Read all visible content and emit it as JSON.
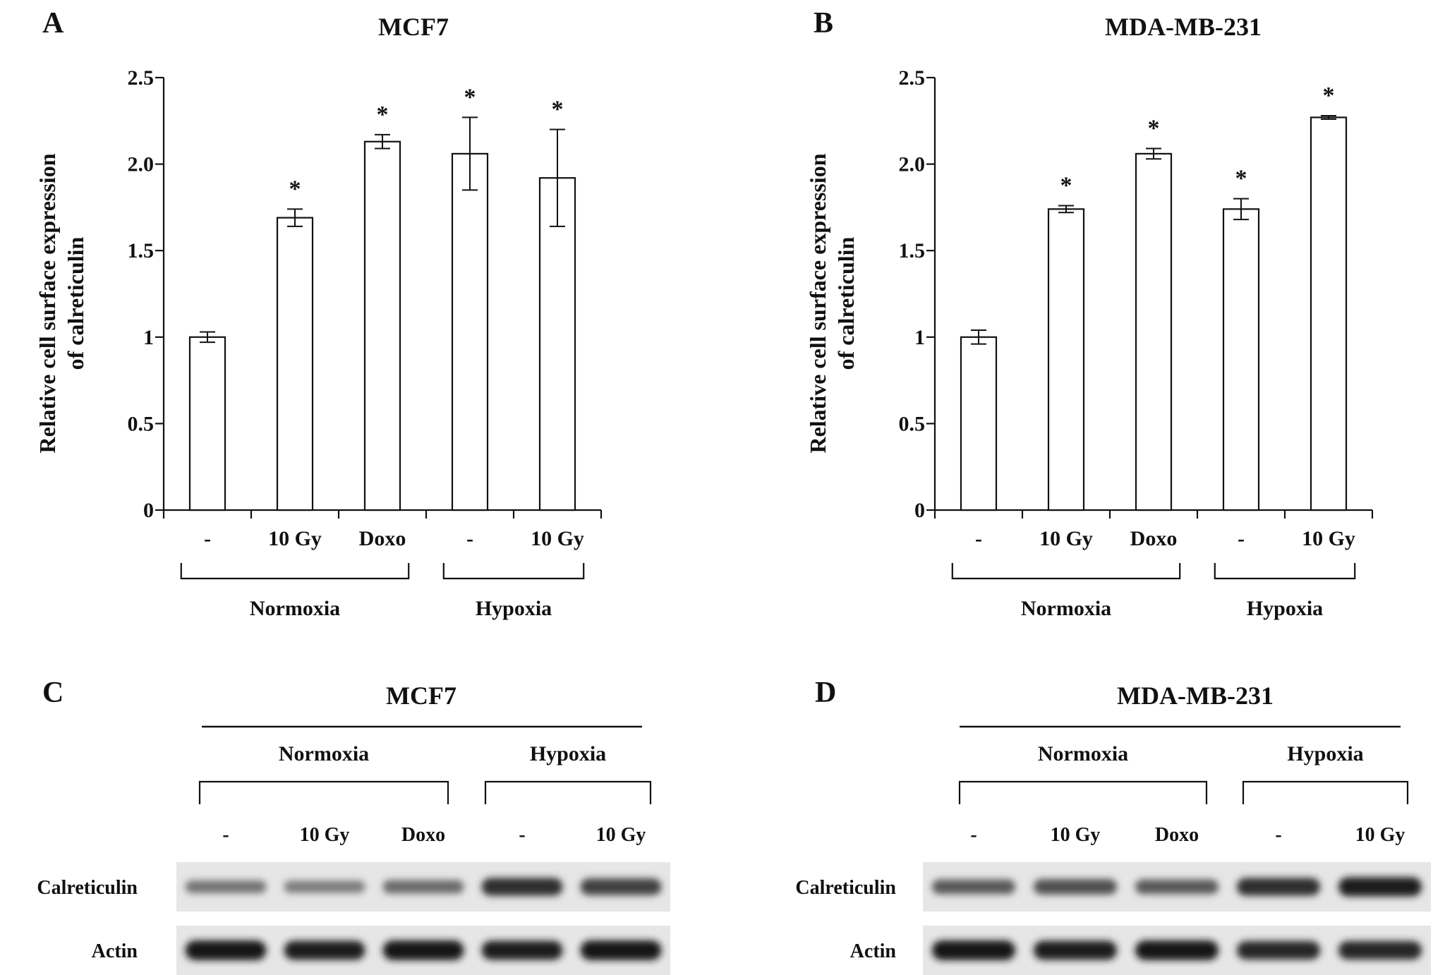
{
  "chart_data": [
    {
      "panel": "A",
      "type": "bar",
      "title": "MCF7",
      "ylabel": "Relative cell surface expression of calreticulin",
      "ylabel_lines": [
        "Relative cell surface expression",
        "of calreticulin"
      ],
      "ylim": [
        0,
        2.5
      ],
      "yticks": [
        "0",
        "0.5",
        "1",
        "1.5",
        "2.0",
        "2.5"
      ],
      "categories": [
        "-",
        "10 Gy",
        "Doxo",
        "-",
        "10 Gy"
      ],
      "values": [
        1.0,
        1.69,
        2.13,
        2.06,
        1.92
      ],
      "errors": [
        0.03,
        0.05,
        0.04,
        0.21,
        0.28
      ],
      "significance": [
        "",
        "*",
        "*",
        "*",
        "*"
      ],
      "groups": [
        {
          "label": "Normoxia",
          "members": [
            0,
            2
          ]
        },
        {
          "label": "Hypoxia",
          "members": [
            3,
            4
          ]
        }
      ],
      "bar_fill": "#ffffff",
      "line_color": "#111111",
      "grid": false
    },
    {
      "panel": "B",
      "type": "bar",
      "title": "MDA-MB-231",
      "ylabel": "Relative cell surface expression of calreticulin",
      "ylabel_lines": [
        "Relative cell surface expression",
        "of calreticulin"
      ],
      "ylim": [
        0,
        2.5
      ],
      "yticks": [
        "0",
        "0.5",
        "1",
        "1.5",
        "2.0",
        "2.5"
      ],
      "categories": [
        "-",
        "10 Gy",
        "Doxo",
        "-",
        "10 Gy"
      ],
      "values": [
        1.0,
        1.74,
        2.06,
        1.74,
        2.27
      ],
      "errors": [
        0.04,
        0.02,
        0.03,
        0.06,
        0.01
      ],
      "significance": [
        "",
        "*",
        "*",
        "*",
        "*"
      ],
      "groups": [
        {
          "label": "Normoxia",
          "members": [
            0,
            2
          ]
        },
        {
          "label": "Hypoxia",
          "members": [
            3,
            4
          ]
        }
      ],
      "bar_fill": "#ffffff",
      "line_color": "#111111",
      "grid": false
    }
  ],
  "blots": [
    {
      "panel": "C",
      "title": "MCF7",
      "groups": [
        "Normoxia",
        "Hypoxia"
      ],
      "lanes": [
        "-",
        "10 Gy",
        "Doxo",
        "-",
        "10 Gy"
      ],
      "rows": [
        {
          "label": "Calreticulin",
          "intensity": [
            0.45,
            0.4,
            0.5,
            0.85,
            0.75
          ]
        },
        {
          "label": "Actin",
          "intensity": [
            1.0,
            0.95,
            1.0,
            0.95,
            1.0
          ]
        }
      ]
    },
    {
      "panel": "D",
      "title": "MDA-MB-231",
      "groups": [
        "Normoxia",
        "Hypoxia"
      ],
      "lanes": [
        "-",
        "10 Gy",
        "Doxo",
        "-",
        "10 Gy"
      ],
      "rows": [
        {
          "label": "Calreticulin",
          "intensity": [
            0.6,
            0.65,
            0.6,
            0.85,
            0.95
          ]
        },
        {
          "label": "Actin",
          "intensity": [
            1.0,
            0.95,
            1.0,
            0.9,
            0.9
          ]
        }
      ]
    }
  ]
}
